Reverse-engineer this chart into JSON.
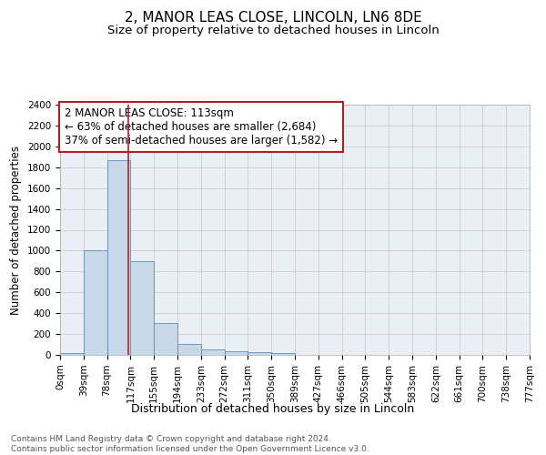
{
  "title": "2, MANOR LEAS CLOSE, LINCOLN, LN6 8DE",
  "subtitle": "Size of property relative to detached houses in Lincoln",
  "xlabel": "Distribution of detached houses by size in Lincoln",
  "ylabel": "Number of detached properties",
  "bar_values": [
    20,
    1005,
    1870,
    900,
    305,
    105,
    50,
    35,
    25,
    15,
    0,
    0,
    0,
    0,
    0,
    0,
    0,
    0,
    0,
    0
  ],
  "bar_labels": [
    "0sqm",
    "39sqm",
    "78sqm",
    "117sqm",
    "155sqm",
    "194sqm",
    "233sqm",
    "272sqm",
    "311sqm",
    "350sqm",
    "389sqm",
    "427sqm",
    "466sqm",
    "505sqm",
    "544sqm",
    "583sqm",
    "622sqm",
    "661sqm",
    "700sqm",
    "738sqm",
    "777sqm"
  ],
  "bar_color": "#c8d8e8",
  "bar_edgecolor": "#5b8db8",
  "vline_color": "#aa2222",
  "annotation_text": "2 MANOR LEAS CLOSE: 113sqm\n← 63% of detached houses are smaller (2,684)\n37% of semi-detached houses are larger (1,582) →",
  "annotation_box_color": "#aa2222",
  "ylim": [
    0,
    2400
  ],
  "yticks": [
    0,
    200,
    400,
    600,
    800,
    1000,
    1200,
    1400,
    1600,
    1800,
    2000,
    2200,
    2400
  ],
  "grid_color": "#cccccc",
  "background_color": "#eaeff5",
  "footer_text": "Contains HM Land Registry data © Crown copyright and database right 2024.\nContains public sector information licensed under the Open Government Licence v3.0.",
  "title_fontsize": 11,
  "subtitle_fontsize": 9.5,
  "xlabel_fontsize": 9,
  "ylabel_fontsize": 8.5,
  "tick_fontsize": 7.5,
  "annotation_fontsize": 8.5,
  "footer_fontsize": 6.5
}
